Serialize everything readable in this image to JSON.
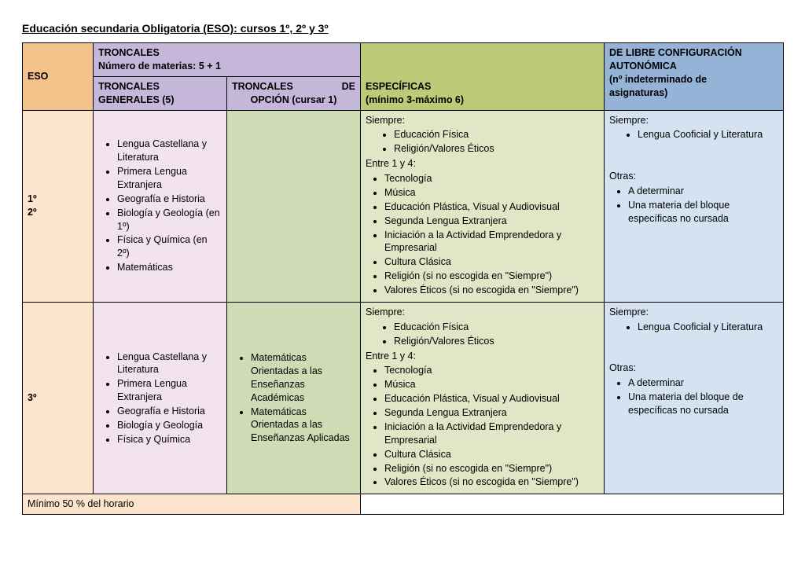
{
  "title": "Educación secundaria Obligatoria (ESO): cursos 1º, 2º y 3º",
  "colors": {
    "eso": "#f4c28b",
    "troncales": "#c4b7d9",
    "especificas": "#bbcb77",
    "libre": "#95b3d7",
    "row1_label": "#fde5cd",
    "row1_tg": "#f2e3ef",
    "row1_to": "#cedbb4",
    "row1_esp": "#e0e7c7",
    "row1_libre": "#d5e2f1",
    "row3_label": "#fde5cd",
    "row3_tg": "#f2e3ef",
    "row3_to": "#cedbb4",
    "row3_esp": "#e0e7c7",
    "row3_libre": "#d5e2f1",
    "footer_white": "#ffffff"
  },
  "widths": {
    "c0": 90,
    "c1": 170,
    "c2": 170,
    "c3": 310,
    "c4": 228
  },
  "header": {
    "eso": "ESO",
    "troncales_line1": "TRONCALES",
    "troncales_line2": "Número de materias: 5 + 1",
    "tg_line1": "TRONCALES",
    "tg_line2": "GENERALES (5)",
    "to_left": "TRONCALES",
    "to_right": "DE",
    "to_line2": "OPCIÓN (cursar 1)",
    "esp_line1": "ESPECÍFICAS",
    "esp_line2": "(mínimo 3-máximo 6)",
    "libre_line1": "DE LIBRE CONFIGURACIÓN",
    "libre_line2": "AUTONÓMICA",
    "libre_line3": "(nº indeterminado de",
    "libre_line4": "asignaturas)"
  },
  "row1": {
    "label_a": "1º",
    "label_b": "2º",
    "tg": [
      "Lengua Castellana y Literatura",
      "Primera Lengua Extranjera",
      "Geografía e Historia",
      "Biología y Geología (en 1º)",
      "Física y Química (en 2º)",
      "Matemáticas"
    ],
    "to": [],
    "esp_siempre_label": "Siempre:",
    "esp_siempre": [
      "Educación Física",
      "Religión/Valores Éticos"
    ],
    "esp_entre_label": "Entre 1 y 4:",
    "esp_entre": [
      "Tecnología",
      "Música",
      "Educación Plástica, Visual y Audiovisual",
      "Segunda Lengua Extranjera",
      "Iniciación a la Actividad Emprendedora y Empresarial",
      "Cultura Clásica",
      "Religión (si no escogida en \"Siempre\")",
      "Valores Éticos (si no escogida en \"Siempre\")"
    ],
    "libre_siempre_label": "Siempre:",
    "libre_siempre": [
      "Lengua Cooficial y Literatura"
    ],
    "libre_otras_label": "Otras:",
    "libre_otras": [
      "A determinar",
      "Una materia del bloque específicas no cursada"
    ]
  },
  "row3": {
    "label": "3º",
    "tg": [
      "Lengua Castellana y Literatura",
      "Primera Lengua Extranjera",
      "Geografía e Historia",
      "Biología y Geología",
      "Física y Química"
    ],
    "to": [
      "Matemáticas Orientadas a las Enseñanzas Académicas",
      "Matemáticas Orientadas a las Enseñanzas Aplicadas"
    ],
    "esp_siempre_label": "Siempre:",
    "esp_siempre": [
      "Educación Física",
      "Religión/Valores Éticos"
    ],
    "esp_entre_label": "Entre 1 y 4:",
    "esp_entre": [
      "Tecnología",
      "Música",
      "Educación Plástica, Visual y Audiovisual",
      "Segunda Lengua Extranjera",
      "Iniciación a la Actividad Emprendedora y Empresarial",
      "Cultura Clásica",
      " Religión (si no escogida en \"Siempre\")",
      "Valores Éticos (si no escogida en \"Siempre\")"
    ],
    "libre_siempre_label": "Siempre:",
    "libre_siempre": [
      "Lengua Cooficial y Literatura"
    ],
    "libre_otras_label": "Otras:",
    "libre_otras": [
      "A determinar",
      "Una materia del bloque de específicas no cursada"
    ]
  },
  "footer": {
    "left": "Mínimo 50 % del horario",
    "right": ""
  }
}
